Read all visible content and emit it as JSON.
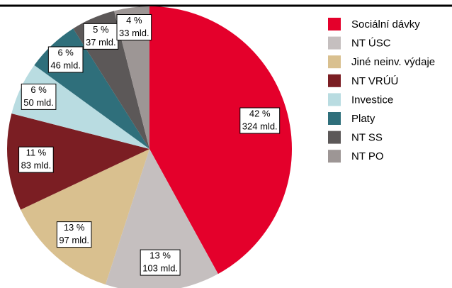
{
  "chart_data": {
    "type": "pie",
    "categories": [
      "Sociální dávky",
      "NT ÚSC",
      "Jiné neinv. výdaje",
      "NT VRÚÚ",
      "Investice",
      "Platy",
      "NT SS",
      "NT PO"
    ],
    "values": [
      42,
      13,
      13,
      11,
      6,
      6,
      5,
      4
    ],
    "value_labels": [
      "42 %",
      "13 %",
      "13 %",
      "11 %",
      "6 %",
      "6 %",
      "5 %",
      "4 %"
    ],
    "amount_labels": [
      "324 mld.",
      "103 mld.",
      "97 mld.",
      "83 mld.",
      "50 mld.",
      "46 mld.",
      "37 mld.",
      "33 mld."
    ],
    "colors": [
      "#e4002b",
      "#c5bfbf",
      "#d9c08f",
      "#7b1e23",
      "#b9dce1",
      "#2f6f7b",
      "#5c5858",
      "#9d9695"
    ],
    "legend": "right"
  }
}
